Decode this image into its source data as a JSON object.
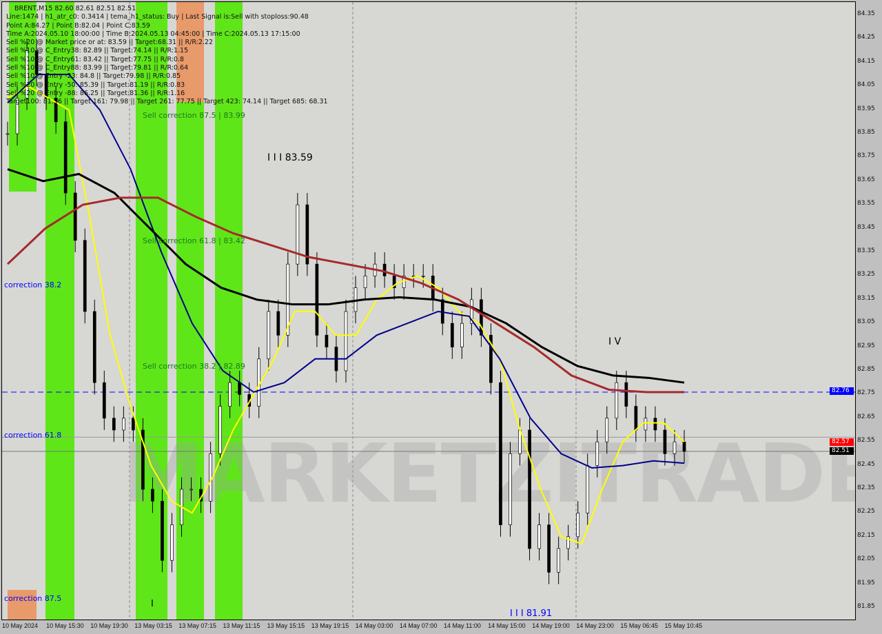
{
  "header": {
    "symbol_line": "BRENT,M15  82.60 82.61 82.51 82.51",
    "lines": [
      "Line:1474 | h1_atr_c0: 0.3414 | tema_h1_status: Buy | Last Signal is:Sell with stoploss:90.48",
      "Point A:84.27 | Point B:82.04 | Point C:83.59",
      "Time A:2024.05.10 18:00:00 | Time B:2024.05.13 04:45:00 | Time C:2024.05.13 17:15:00",
      "Sell %20 @ Market price or at: 83.59 || Target:68.31 || R/R:2.22",
      "Sell %10 @ C_Entry38: 82.89 || Target:74.14 || R/R:1.15",
      "Sell %10 @ C_Entry61: 83.42 || Target:77.75 || R/R:0.8",
      "Sell %10 @ C_Entry88: 83.99 || Target:79.81 || R/R:0.64",
      "Sell %10 @ Entry -23: 84.8 || Target:79.98 || R/R:0.85",
      "Sell %20 @ Entry -50: 85.39 || Target:81.19 || R/R:0.83",
      "Sell %20 @ Entry -88: 86.25 || Target:81.36 || R/R:1.16",
      "Target100: 81.36 || Target 161: 79.98 || Target 261: 77.75 || Target 423: 74.14 || Target 685: 68.31"
    ]
  },
  "annotations": {
    "sell_corr_875": "Sell correction 87.5 | 83.99",
    "sell_corr_618": "Sell correction 61.8 | 83.42",
    "sell_corr_382": "Sell correction 38.2 | 82.89",
    "corr_382": "correction 38.2",
    "corr_618": "correction 61.8",
    "corr_875": "correction 87.5",
    "wave_iii_top": "I I I  83.59",
    "wave_iv": "I V",
    "wave_iii_bottom": "I I I  81.91",
    "wave_i": "I"
  },
  "watermark": "MARKETZITRADE",
  "price_tags": {
    "blue": "82.76",
    "red": "82.57",
    "black": "82.51"
  },
  "colors": {
    "bg": "#d7d7d4",
    "green": "#5fe619",
    "orange": "#e89a6b",
    "blue_line": "#0000ff",
    "yellow": "#ffff00",
    "navy": "#00008b",
    "black_ma": "#000000",
    "red_ma": "#a52a2a"
  },
  "chart_data": {
    "type": "candlestick",
    "title": "BRENT,M15",
    "ylim": [
      81.85,
      84.35
    ],
    "y_ticks": [
      "84.35",
      "84.25",
      "84.15",
      "84.05",
      "83.95",
      "83.85",
      "83.75",
      "83.65",
      "83.55",
      "83.45",
      "83.35",
      "83.25",
      "83.15",
      "83.05",
      "82.95",
      "82.85",
      "82.75",
      "82.65",
      "82.55",
      "82.45",
      "82.35",
      "82.25",
      "82.15",
      "82.05",
      "81.95",
      "81.85"
    ],
    "x_ticks": [
      "10 May 2024",
      "10 May 15:30",
      "10 May 19:30",
      "13 May 03:15",
      "13 May 07:15",
      "13 May 11:15",
      "13 May 15:15",
      "13 May 19:15",
      "14 May 03:00",
      "14 May 07:00",
      "14 May 11:00",
      "14 May 15:00",
      "14 May 19:00",
      "14 May 23:00",
      "15 May 06:45",
      "15 May 10:45"
    ],
    "close": [
      83.85,
      84.0,
      84.2,
      84.1,
      84.0,
      83.9,
      83.6,
      83.4,
      83.1,
      82.8,
      82.65,
      82.6,
      82.65,
      82.6,
      82.35,
      82.3,
      82.05,
      82.2,
      82.35,
      82.35,
      82.3,
      82.5,
      82.7,
      82.8,
      82.75,
      82.7,
      82.9,
      83.1,
      83.0,
      83.3,
      83.55,
      83.3,
      83.0,
      82.95,
      82.85,
      83.1,
      83.2,
      83.25,
      83.3,
      83.25,
      83.2,
      83.25,
      83.25,
      83.25,
      83.15,
      83.05,
      82.95,
      83.05,
      83.15,
      83.0,
      82.8,
      82.2,
      82.5,
      82.6,
      82.1,
      82.2,
      82.0,
      82.1,
      82.15,
      82.25,
      82.45,
      82.55,
      82.65,
      82.8,
      82.7,
      82.6,
      82.65,
      82.6,
      82.5,
      82.55,
      82.51
    ],
    "series": [
      {
        "color": "#ffff00",
        "values": [
          84.0,
          84.05,
          84.0,
          83.95,
          83.5,
          83.0,
          82.7,
          82.45,
          82.3,
          82.25,
          82.4,
          82.6,
          82.75,
          82.9,
          83.1,
          83.1,
          83.0,
          83.0,
          83.15,
          83.22,
          83.25,
          83.2,
          83.1,
          83.05,
          82.9,
          82.6,
          82.35,
          82.15,
          82.12,
          82.35,
          82.55,
          82.63,
          82.63,
          82.55
        ]
      },
      {
        "color": "#00008b",
        "values": [
          83.98,
          84.1,
          84.1,
          83.95,
          83.7,
          83.35,
          83.05,
          82.85,
          82.76,
          82.8,
          82.9,
          82.9,
          83.0,
          83.05,
          83.1,
          83.08,
          82.9,
          82.65,
          82.5,
          82.44,
          82.45,
          82.47,
          82.46
        ]
      },
      {
        "color": "#000000",
        "values": [
          83.7,
          83.65,
          83.68,
          83.6,
          83.45,
          83.3,
          83.2,
          83.15,
          83.13,
          83.13,
          83.15,
          83.16,
          83.15,
          83.12,
          83.05,
          82.95,
          82.87,
          82.83,
          82.82,
          82.8
        ]
      },
      {
        "color": "#a52a2a",
        "values": [
          83.3,
          83.45,
          83.55,
          83.58,
          83.58,
          83.5,
          83.43,
          83.38,
          83.33,
          83.3,
          83.27,
          83.22,
          83.15,
          83.05,
          82.95,
          82.83,
          82.77,
          82.76,
          82.76
        ]
      }
    ],
    "hlines": [
      82.76,
      82.57,
      82.51
    ],
    "grid": false
  }
}
